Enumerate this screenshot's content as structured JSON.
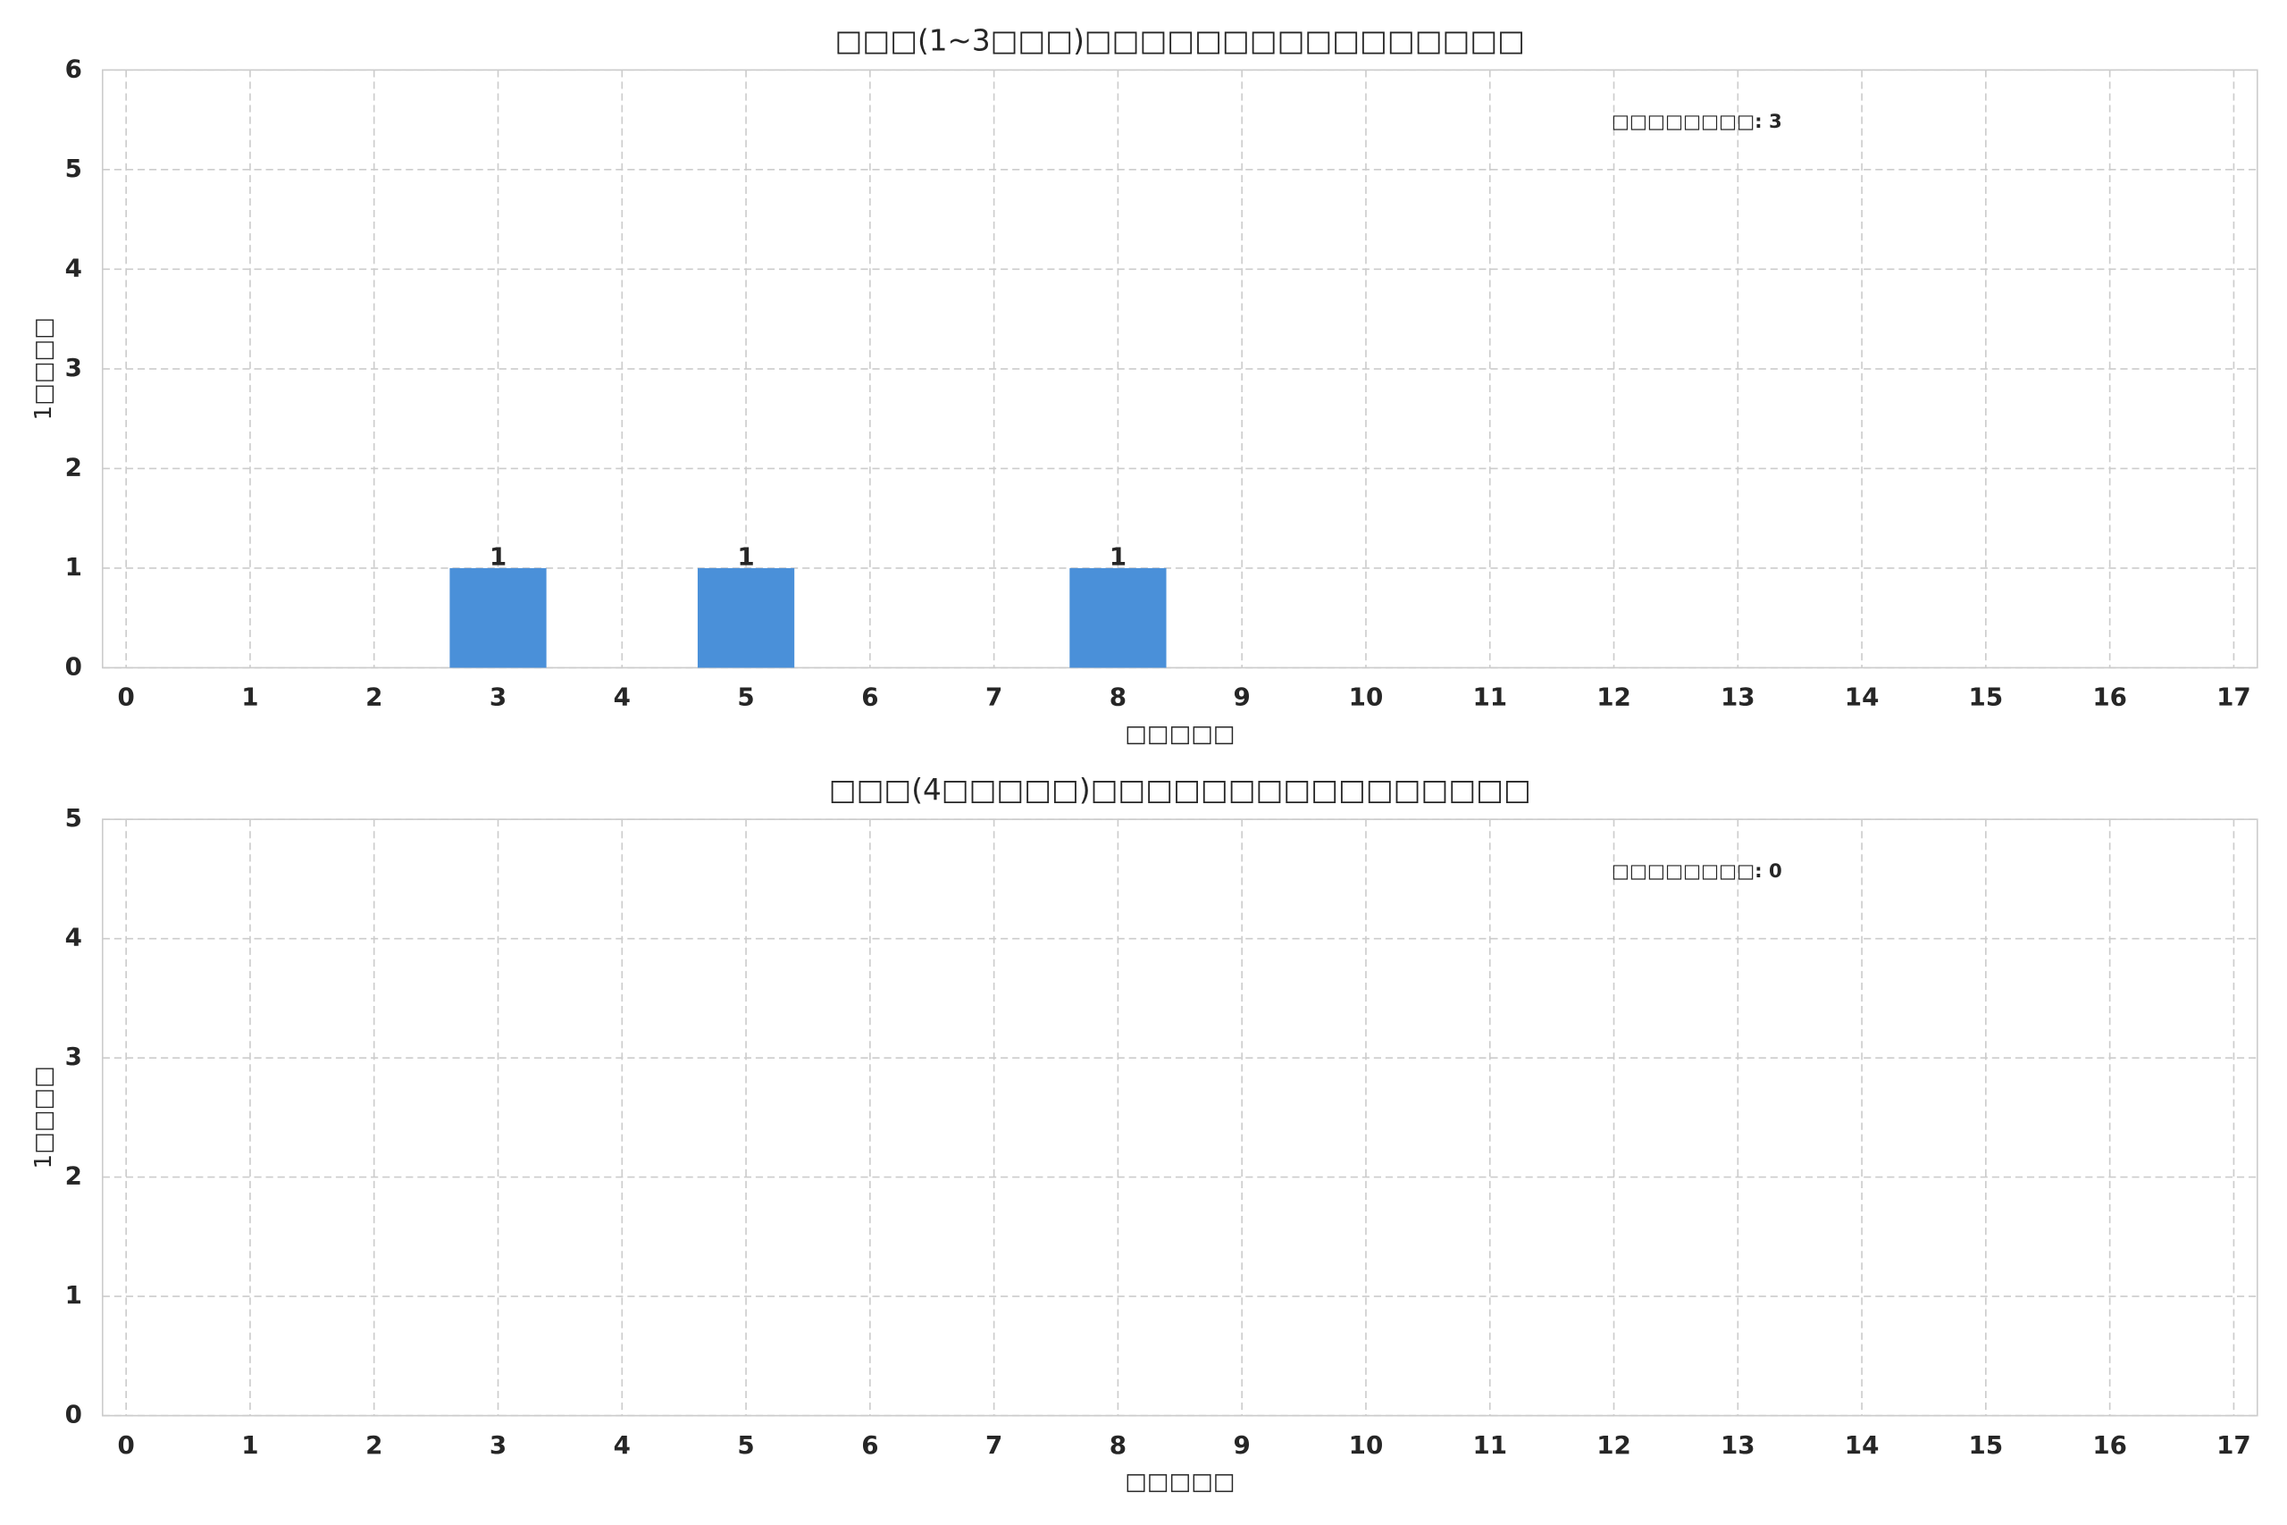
{
  "chart_data": [
    {
      "type": "bar",
      "title": "□□□(1~3□□□)□□□□□□□□□□□□□□□□",
      "x_label": "□□□□□",
      "y_label": "1□□□□",
      "annotation": "□□□□□□□□: 3",
      "x": [
        3,
        5,
        8
      ],
      "values": [
        1,
        1,
        1
      ],
      "color": "#4a90d9",
      "xlim": [
        -0.19,
        17.19
      ],
      "xticks": [
        0,
        1,
        2,
        3,
        4,
        5,
        6,
        7,
        8,
        9,
        10,
        11,
        12,
        13,
        14,
        15,
        16,
        17
      ],
      "ylim": [
        0,
        6
      ],
      "yticks": [
        0,
        1,
        2,
        3,
        4,
        5,
        6
      ],
      "grid": true
    },
    {
      "type": "bar",
      "title": "□□□(4□□□□□)□□□□□□□□□□□□□□□□",
      "x_label": "□□□□□",
      "y_label": "1□□□□",
      "annotation": "□□□□□□□□: 0",
      "x": [],
      "values": [],
      "color": "#4a90d9",
      "xlim": [
        -0.19,
        17.19
      ],
      "xticks": [
        0,
        1,
        2,
        3,
        4,
        5,
        6,
        7,
        8,
        9,
        10,
        11,
        12,
        13,
        14,
        15,
        16,
        17
      ],
      "ylim": [
        0,
        5
      ],
      "yticks": [
        0,
        1,
        2,
        3,
        4,
        5
      ],
      "grid": true
    }
  ]
}
